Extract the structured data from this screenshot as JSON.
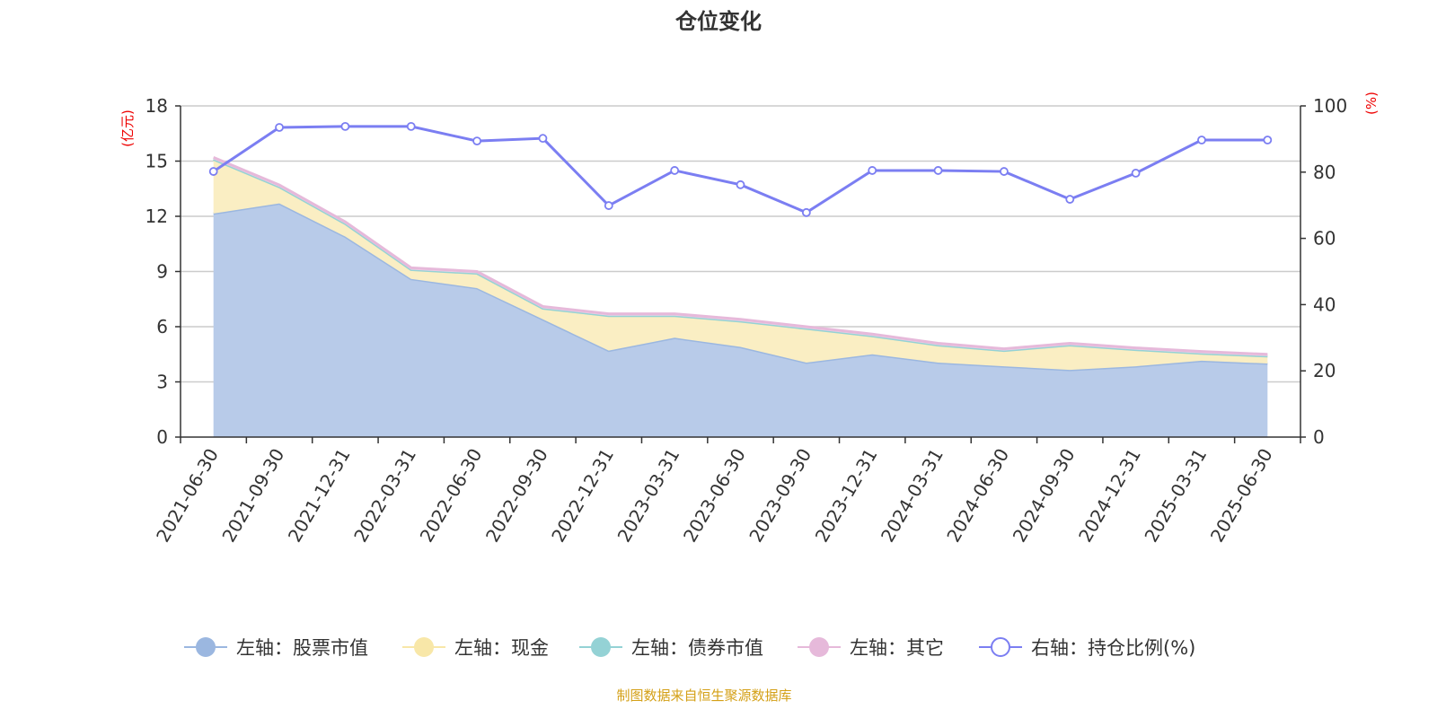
{
  "chart_data": {
    "type": "area",
    "title": "仓位变化",
    "left_axis_unit": "(亿元)",
    "right_axis_unit": "(%)",
    "left_ylim": [
      0,
      18
    ],
    "left_ticks": [
      0,
      3,
      6,
      9,
      12,
      15,
      18
    ],
    "right_ylim": [
      0,
      100
    ],
    "right_ticks": [
      0,
      20,
      40,
      60,
      80,
      100
    ],
    "grid": true,
    "legend_position": "bottom",
    "categories": [
      "2021-06-30",
      "2021-09-30",
      "2021-12-31",
      "2022-03-31",
      "2022-06-30",
      "2022-09-30",
      "2022-12-31",
      "2023-03-31",
      "2023-06-30",
      "2023-09-30",
      "2023-12-31",
      "2024-03-31",
      "2024-06-30",
      "2024-09-30",
      "2024-12-31",
      "2025-03-31",
      "2025-06-30"
    ],
    "series": [
      {
        "name": "左轴：股票市值",
        "axis": "left",
        "stack": true,
        "color": "#9bb7e0",
        "fill": "#b8cbe9",
        "values": [
          12.15,
          12.7,
          10.9,
          8.6,
          8.1,
          6.4,
          4.7,
          5.4,
          4.9,
          4.05,
          4.5,
          4.05,
          3.85,
          3.65,
          3.85,
          4.15,
          4.0
        ]
      },
      {
        "name": "左轴：现金",
        "axis": "left",
        "stack": true,
        "color": "#f8e7a8",
        "fill": "#faeec3",
        "values": [
          2.95,
          0.9,
          0.7,
          0.5,
          0.8,
          0.6,
          1.9,
          1.2,
          1.4,
          1.85,
          1.0,
          0.95,
          0.85,
          1.35,
          0.9,
          0.4,
          0.4
        ]
      },
      {
        "name": "左轴：债券市值",
        "axis": "left",
        "stack": true,
        "color": "#94d2d5",
        "fill": "#b5e0e2",
        "values": [
          0,
          0,
          0,
          0,
          0,
          0,
          0,
          0,
          0,
          0,
          0,
          0,
          0,
          0,
          0,
          0,
          0
        ]
      },
      {
        "name": "左轴：其它",
        "axis": "left",
        "stack": true,
        "color": "#e6b9da",
        "fill": "#f0d3e8",
        "values": [
          0.1,
          0.1,
          0.1,
          0.1,
          0.1,
          0.1,
          0.1,
          0.1,
          0.1,
          0.1,
          0.1,
          0.1,
          0.1,
          0.1,
          0.1,
          0.1,
          0.1
        ]
      },
      {
        "name": "右轴：持仓比例(%)",
        "axis": "right",
        "type": "line",
        "color": "#7b7ef2",
        "values": [
          80.2,
          93.5,
          93.8,
          93.8,
          89.4,
          90.2,
          69.9,
          80.5,
          76.2,
          67.8,
          80.5,
          80.5,
          80.2,
          71.8,
          79.7,
          89.7,
          89.7
        ]
      }
    ]
  },
  "source_note": "制图数据来自恒生聚源数据库"
}
